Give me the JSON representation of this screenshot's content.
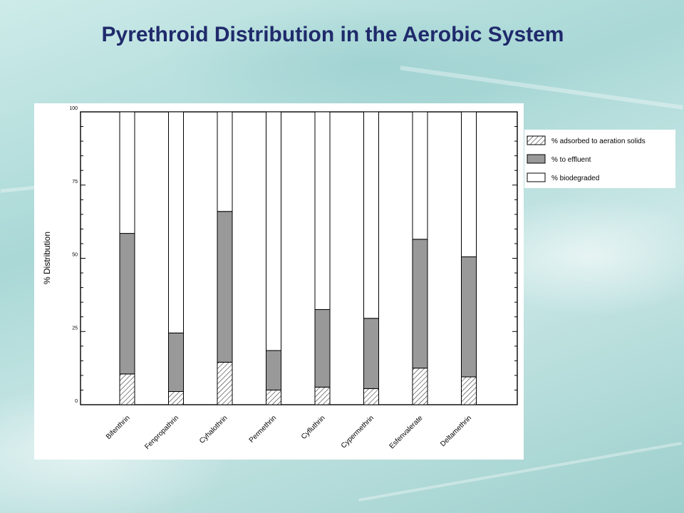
{
  "slide": {
    "title": "Pyrethroid Distribution in the Aerobic System"
  },
  "chart_data": {
    "type": "bar",
    "stacked": true,
    "title": "",
    "xlabel": "",
    "ylabel": "% Distribution",
    "ylim": [
      0,
      100
    ],
    "yticks": [
      0,
      25,
      50,
      75,
      100
    ],
    "categories": [
      "Bifenthrin",
      "Fenpropathrin",
      "Cyhalothrin",
      "Permethrin",
      "Cyfluthrin",
      "Cypermethrin",
      "Esfenvalerate",
      "Deltamethrin"
    ],
    "series": [
      {
        "name": "% adsorbed to aeration solids",
        "values": [
          10.5,
          4.5,
          14.5,
          5,
          6,
          5.5,
          12.5,
          9.5
        ],
        "fill": "hatch"
      },
      {
        "name": "% to effluent",
        "values": [
          48,
          20,
          51.5,
          13.5,
          26.5,
          24,
          44,
          41
        ],
        "fill": "#999999"
      },
      {
        "name": "% biodegraded",
        "values": [
          41.5,
          75.5,
          34,
          81.5,
          67.5,
          70.5,
          43.5,
          49.5
        ],
        "fill": "#ffffff"
      }
    ],
    "legend": "right",
    "grid": false
  }
}
